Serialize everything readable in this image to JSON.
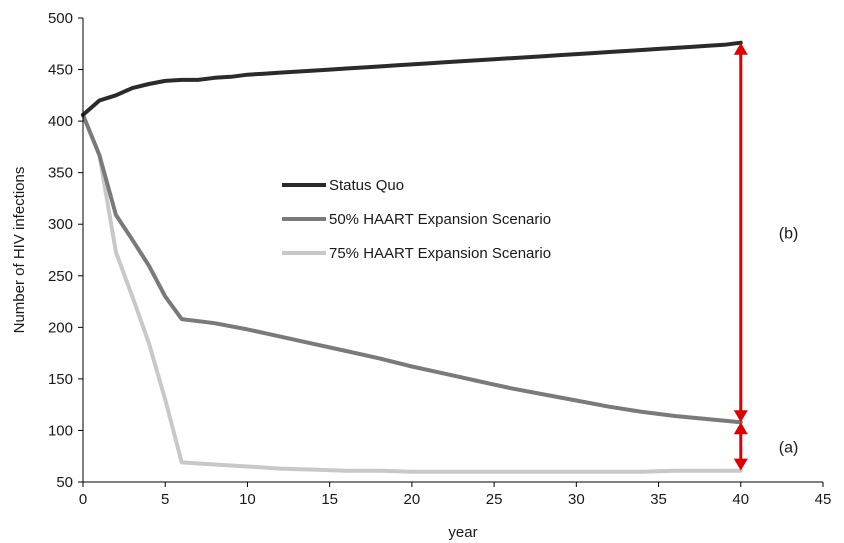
{
  "chart_data": {
    "type": "line",
    "xlabel": "year",
    "ylabel": "Number of HIV infections",
    "xlim": [
      0,
      45
    ],
    "ylim": [
      50,
      500
    ],
    "xticks": [
      0,
      5,
      10,
      15,
      20,
      25,
      30,
      35,
      40,
      45
    ],
    "yticks": [
      50,
      100,
      150,
      200,
      250,
      300,
      350,
      400,
      450,
      500
    ],
    "grid": false,
    "legend_position": "center-left",
    "series": [
      {
        "name": "Status Quo",
        "color": "#2b2b2b",
        "x": [
          0,
          1,
          2,
          3,
          4,
          5,
          6,
          7,
          8,
          9,
          10,
          11,
          12,
          13,
          14,
          15,
          16,
          17,
          18,
          19,
          20,
          21,
          22,
          23,
          24,
          25,
          26,
          27,
          28,
          29,
          30,
          31,
          32,
          33,
          34,
          35,
          36,
          37,
          38,
          39,
          40
        ],
        "values": [
          406,
          420,
          425,
          432,
          436,
          439,
          440,
          440,
          442,
          443,
          445,
          446,
          447,
          448,
          449,
          450,
          451,
          452,
          453,
          454,
          455,
          456,
          457,
          458,
          459,
          460,
          461,
          462,
          463,
          464,
          465,
          466,
          467,
          468,
          469,
          470,
          471,
          472,
          473,
          474,
          476
        ]
      },
      {
        "name": "50% HAART Expansion Scenario",
        "color": "#7a7a7a",
        "x": [
          0,
          1,
          2,
          3,
          4,
          5,
          6,
          8,
          10,
          12,
          14,
          16,
          18,
          20,
          22,
          24,
          26,
          28,
          30,
          32,
          34,
          36,
          38,
          40
        ],
        "values": [
          406,
          367,
          309,
          285,
          260,
          230,
          208,
          204,
          198,
          191,
          184,
          177,
          170,
          162,
          155,
          148,
          141,
          135,
          129,
          123,
          118,
          114,
          111,
          108
        ]
      },
      {
        "name": "75% HAART Expansion Scenario",
        "color": "#c8c8c8",
        "x": [
          0,
          1,
          2,
          3,
          4,
          5,
          6,
          8,
          10,
          12,
          14,
          16,
          18,
          20,
          22,
          24,
          26,
          28,
          30,
          32,
          34,
          36,
          38,
          40
        ],
        "values": [
          406,
          367,
          273,
          230,
          185,
          130,
          69,
          67,
          65,
          63,
          62,
          61,
          61,
          60,
          60,
          60,
          60,
          60,
          60,
          60,
          60,
          61,
          61,
          61
        ]
      }
    ],
    "annotations": [
      {
        "label": "(b)",
        "arrow_x": 40,
        "from": 108,
        "to": 476,
        "color": "#e00000"
      },
      {
        "label": "(a)",
        "arrow_x": 40,
        "from": 61,
        "to": 108,
        "color": "#e00000"
      }
    ]
  }
}
